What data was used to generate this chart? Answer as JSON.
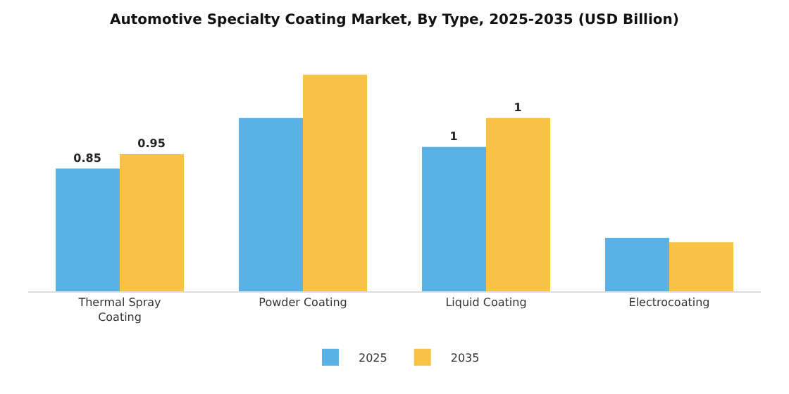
{
  "chart_data": {
    "type": "bar",
    "title": "Automotive Specialty Coating Market, By Type, 2025-2035 (USD Billion)",
    "categories": [
      "Thermal Spray\nCoating",
      "Powder Coating",
      "Liquid Coating",
      "Electrocoating"
    ],
    "series": [
      {
        "name": "2025",
        "color": "#5ab1e5",
        "values": [
          0.85,
          1.2,
          1.0,
          0.37
        ],
        "value_labels": [
          "0.85",
          null,
          "1",
          null
        ]
      },
      {
        "name": "2035",
        "color": "#f8c245",
        "values": [
          0.95,
          1.5,
          1.2,
          0.34
        ],
        "value_labels": [
          "0.95",
          null,
          "1",
          null
        ]
      }
    ],
    "legend": "bottom"
  }
}
